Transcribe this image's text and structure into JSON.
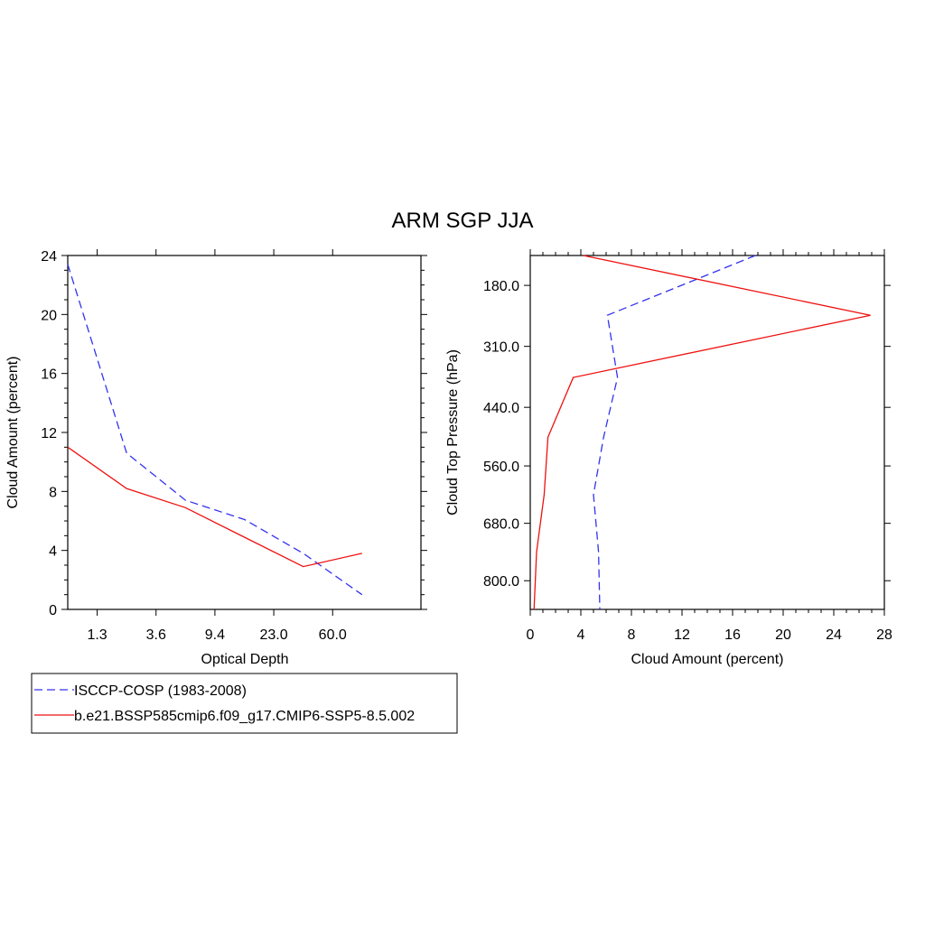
{
  "title": "ARM SGP JJA",
  "colors": {
    "obs": "#3333ee",
    "model": "#ee1111",
    "axis": "#000000"
  },
  "chart_data": [
    {
      "type": "line",
      "xlabel": "Optical Depth",
      "ylabel": "Cloud Amount (percent)",
      "xlim": [
        0,
        6
      ],
      "ylim": [
        0,
        24
      ],
      "x_tick_labels": [
        "1.3",
        "3.6",
        "9.4",
        "23.0",
        "60.0"
      ],
      "y_tick_labels": [
        "0",
        "4",
        "8",
        "12",
        "16",
        "20",
        "24"
      ],
      "x": [
        0,
        1,
        2,
        3,
        4,
        5
      ],
      "series": [
        {
          "name": "ISCCP-COSP (1983-2008)",
          "color": "#3333ee",
          "dash": "dashed",
          "values": [
            23.4,
            10.6,
            7.4,
            6.1,
            3.8,
            1.0
          ]
        },
        {
          "name": "b.e21.BSSP585cmip6.f09_g17.CMIP6-SSP5-8.5.002",
          "color": "#ee1111",
          "dash": "solid",
          "values": [
            11.0,
            8.2,
            6.9,
            4.9,
            2.9,
            3.8
          ]
        }
      ]
    },
    {
      "type": "line",
      "xlabel": "Cloud Amount (percent)",
      "ylabel": "Cloud Top Pressure (hPa)",
      "xlim": [
        0,
        28
      ],
      "ylim": [
        120,
        860
      ],
      "y_reversed": true,
      "x_tick_labels": [
        "0",
        "4",
        "8",
        "12",
        "16",
        "20",
        "24",
        "28"
      ],
      "y_tick_labels": [
        "180.0",
        "310.0",
        "440.0",
        "560.0",
        "680.0",
        "800.0"
      ],
      "pressure": [
        120,
        245,
        375,
        500,
        620,
        740,
        860
      ],
      "series": [
        {
          "name": "ISCCP-COSP (1983-2008)",
          "color": "#3333ee",
          "dash": "dashed",
          "values": [
            17.8,
            6.1,
            6.9,
            5.8,
            5.0,
            5.4,
            5.5
          ]
        },
        {
          "name": "b.e21.BSSP585cmip6.f09_g17.CMIP6-SSP5-8.5.002",
          "color": "#ee1111",
          "dash": "solid",
          "values": [
            4.2,
            26.9,
            3.4,
            1.4,
            1.1,
            0.5,
            0.3
          ]
        }
      ]
    }
  ],
  "legend": [
    {
      "label": "ISCCP-COSP (1983-2008)",
      "color": "#3333ee",
      "dash": "dashed"
    },
    {
      "label": "b.e21.BSSP585cmip6.f09_g17.CMIP6-SSP5-8.5.002",
      "color": "#ee1111",
      "dash": "solid"
    }
  ]
}
